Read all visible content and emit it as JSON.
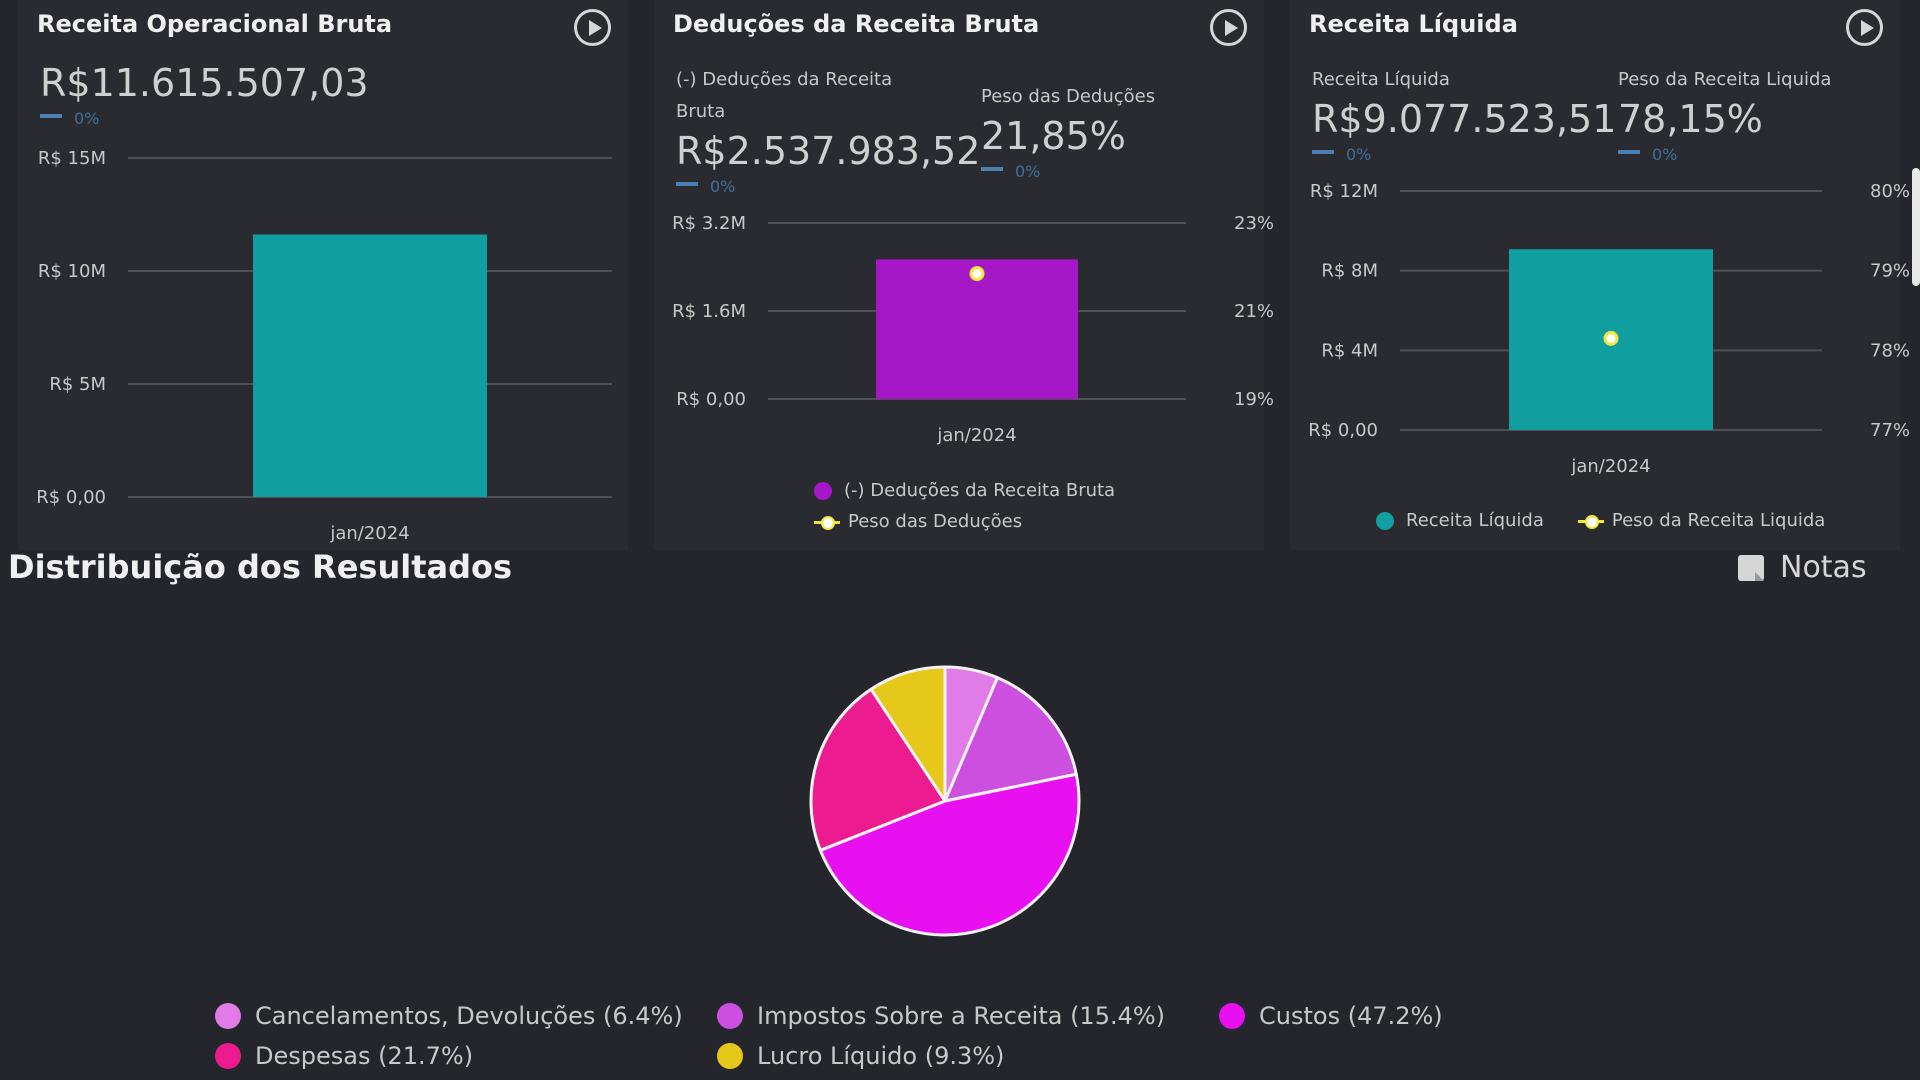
{
  "cards": [
    {
      "title": "Receita Operacional Bruta",
      "kpis": [
        {
          "label": "",
          "value": "R$11.615.507,03",
          "change": "0%"
        }
      ]
    },
    {
      "title": "Deduções da Receita Bruta",
      "kpis": [
        {
          "label": "(-) Deduções da Receita Bruta",
          "value": "R$2.537.983,52",
          "change": "0%"
        },
        {
          "label": "Peso das Deduções",
          "value": "21,85%",
          "change": "0%"
        }
      ],
      "legend": [
        "(-) Deduções da Receita Bruta",
        "Peso das Deduções"
      ]
    },
    {
      "title": "Receita Líquida",
      "kpis": [
        {
          "label": "Receita Líquida",
          "value": "R$9.077.523,51",
          "change": "0%"
        },
        {
          "label": "Peso da Receita Liquida",
          "value": "78,15%",
          "change": "0%"
        }
      ],
      "legend": [
        "Receita Líquida",
        "Peso da Receita Liquida"
      ]
    }
  ],
  "section": {
    "title": "Distribuição dos Resultados",
    "notes_label": "Notas"
  },
  "colors": {
    "teal": "#109ea0",
    "purple": "#a617c8",
    "yellow_line": "#f3e73a",
    "legend_purple": "#a617c8",
    "legend_teal": "#109ea0"
  },
  "chart_data": [
    {
      "type": "bar",
      "categories": [
        "jan/2024"
      ],
      "values": [
        11615507.03
      ],
      "y_ticks": [
        "R$ 0,00",
        "R$ 5M",
        "R$ 10M",
        "R$ 15M"
      ],
      "ylim": [
        0,
        15000000
      ],
      "color": "#109ea0"
    },
    {
      "type": "bar",
      "categories": [
        "jan/2024"
      ],
      "series": [
        {
          "name": "(-) Deduções da Receita Bruta",
          "values": [
            2537983.52
          ],
          "axis": "left",
          "color": "#a617c8"
        },
        {
          "name": "Peso das Deduções",
          "values": [
            21.85
          ],
          "axis": "right",
          "color": "#f3e73a"
        }
      ],
      "y_ticks": [
        "R$ 0,00",
        "R$ 1.6M",
        "R$ 3.2M"
      ],
      "ylim": [
        0,
        3200000
      ],
      "y2_ticks": [
        "19%",
        "21%",
        "23%"
      ],
      "y2lim": [
        19,
        23
      ]
    },
    {
      "type": "bar",
      "categories": [
        "jan/2024"
      ],
      "series": [
        {
          "name": "Receita Líquida",
          "values": [
            9077523.51
          ],
          "axis": "left",
          "color": "#109ea0"
        },
        {
          "name": "Peso da Receita Liquida",
          "values": [
            78.15
          ],
          "axis": "right",
          "color": "#f3e73a"
        }
      ],
      "y_ticks": [
        "R$ 0,00",
        "R$ 4M",
        "R$ 8M",
        "R$ 12M"
      ],
      "ylim": [
        0,
        12000000
      ],
      "y2_ticks": [
        "77%",
        "78%",
        "79%",
        "80%"
      ],
      "y2lim": [
        77,
        80
      ]
    },
    {
      "type": "pie",
      "slices": [
        {
          "label": "Cancelamentos, Devoluções (6.4%)",
          "value": 6.4,
          "color": "#e07be8"
        },
        {
          "label": "Impostos Sobre a Receita (15.4%)",
          "value": 15.4,
          "color": "#cc4fe0"
        },
        {
          "label": "Custos (47.2%)",
          "value": 47.2,
          "color": "#e80ff0"
        },
        {
          "label": "Despesas (21.7%)",
          "value": 21.7,
          "color": "#ec1b8f"
        },
        {
          "label": "Lucro Líquido (9.3%)",
          "value": 9.3,
          "color": "#e6c81a"
        }
      ]
    }
  ]
}
